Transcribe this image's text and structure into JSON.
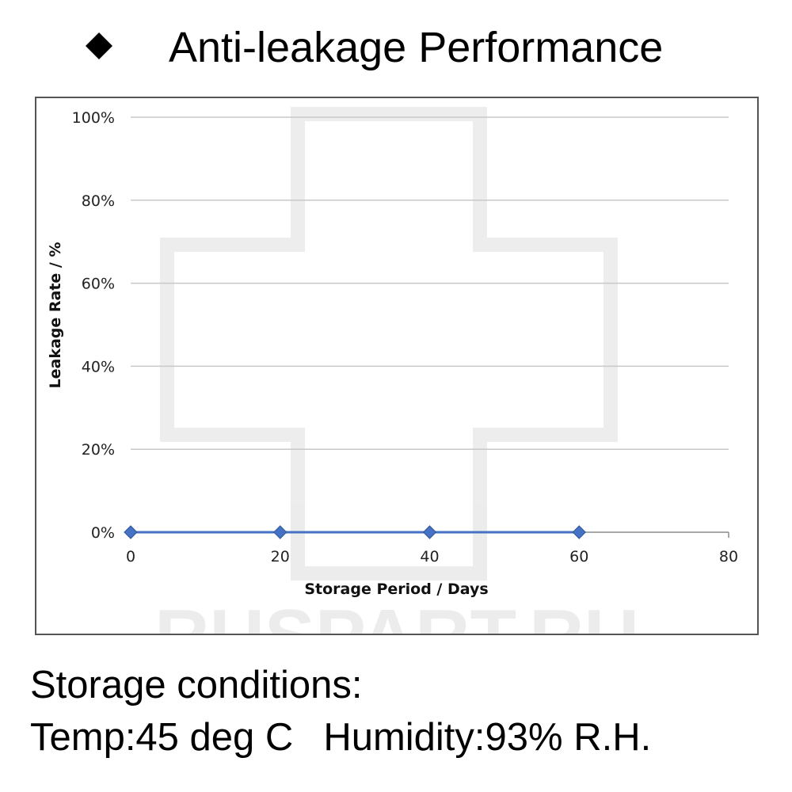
{
  "heading": {
    "bullet_icon": "diamond-bullet-icon",
    "title": "Anti-leakage Performance"
  },
  "watermark": "RUSPART.RU",
  "chart_data": {
    "type": "line",
    "title": "",
    "xlabel": "Storage Period / Days",
    "ylabel": "Leakage Rate / %",
    "x_ticks": [
      0,
      20,
      40,
      60,
      80
    ],
    "y_ticks": [
      "0%",
      "20%",
      "40%",
      "60%",
      "80%",
      "100%"
    ],
    "xlim": [
      0,
      80
    ],
    "ylim": [
      0,
      100
    ],
    "grid": "horizontal",
    "series": [
      {
        "x": [
          0,
          20,
          40,
          60
        ],
        "values": [
          0,
          0,
          0,
          0
        ],
        "color": "#4472C4",
        "marker": "diamond"
      }
    ]
  },
  "conditions": {
    "heading": "Storage conditions:",
    "temp": "Temp:45 deg C",
    "humidity": "Humidity:93% R.H."
  }
}
